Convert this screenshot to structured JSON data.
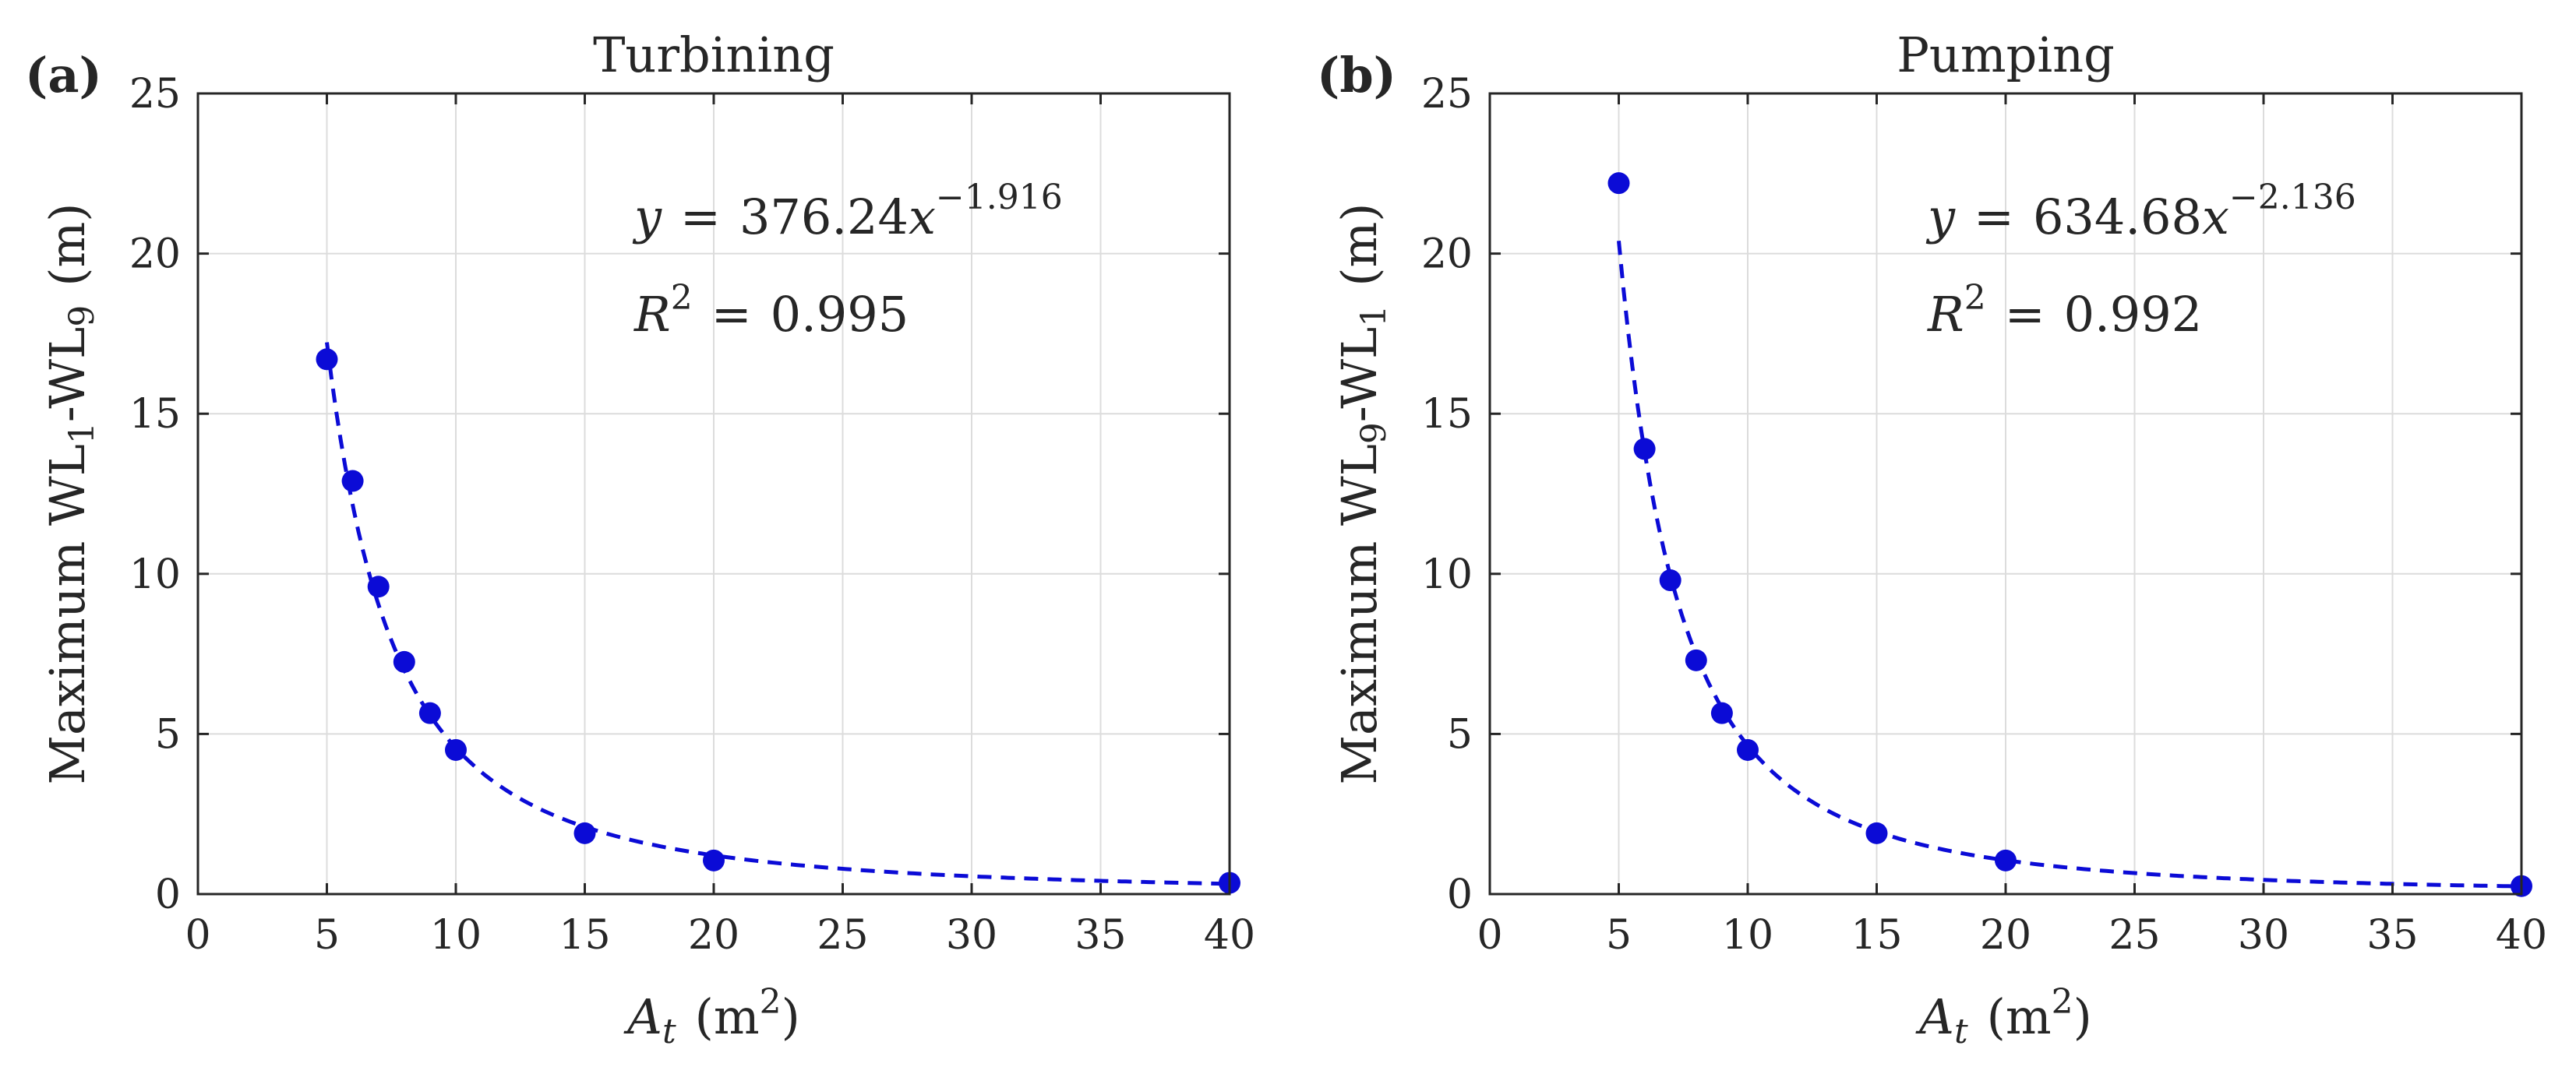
{
  "chart_data": [
    {
      "type": "scatter",
      "panel_label": "(a)",
      "title": "Turbining",
      "xlabel": {
        "symbol": "A",
        "sub": "t",
        "unit": "(m",
        "sup": "2",
        "close": ")"
      },
      "ylabel": {
        "text": "Maximum WL",
        "sub1": "1",
        "mid": "-WL",
        "sub2": "9",
        "unit": "(m)"
      },
      "xlim": [
        0,
        40
      ],
      "ylim": [
        0,
        25
      ],
      "xticks": [
        0,
        5,
        10,
        15,
        20,
        25,
        30,
        35,
        40
      ],
      "yticks": [
        0,
        5,
        10,
        15,
        20,
        25
      ],
      "grid": true,
      "series": [
        {
          "name": "Maximum WL1-WL9",
          "style": "markers",
          "color": "#0b0bd6",
          "x": [
            5,
            6,
            7,
            8,
            9,
            10,
            15,
            20,
            40
          ],
          "y": [
            16.7,
            12.9,
            9.6,
            7.25,
            5.65,
            4.5,
            1.9,
            1.05,
            0.35
          ]
        },
        {
          "name": "Power-law fit",
          "style": "dashed",
          "color": "#0b0bd6",
          "fit": {
            "a": 376.24,
            "b": -1.916
          },
          "x_range": [
            5,
            40
          ]
        }
      ],
      "annotations": {
        "eq_y": "y",
        "eq_eq": "=",
        "eq_coef": "376.24",
        "eq_x": "x",
        "eq_exp": "−1.916",
        "r2_R": "R",
        "r2_sup": "2",
        "r2_eq": "=",
        "r2_val": "0.995"
      }
    },
    {
      "type": "scatter",
      "panel_label": "(b)",
      "title": "Pumping",
      "xlabel": {
        "symbol": "A",
        "sub": "t",
        "unit": "(m",
        "sup": "2",
        "close": ")"
      },
      "ylabel": {
        "text": "Maximum WL",
        "sub1": "9",
        "mid": "-WL",
        "sub2": "1",
        "unit": "(m)"
      },
      "xlim": [
        0,
        40
      ],
      "ylim": [
        0,
        25
      ],
      "xticks": [
        0,
        5,
        10,
        15,
        20,
        25,
        30,
        35,
        40
      ],
      "yticks": [
        0,
        5,
        10,
        15,
        20,
        25
      ],
      "grid": true,
      "series": [
        {
          "name": "Maximum WL9-WL1",
          "style": "markers",
          "color": "#0b0bd6",
          "x": [
            5,
            6,
            7,
            8,
            9,
            10,
            15,
            20,
            40
          ],
          "y": [
            22.2,
            13.9,
            9.8,
            7.3,
            5.65,
            4.5,
            1.9,
            1.05,
            0.25
          ]
        },
        {
          "name": "Power-law fit",
          "style": "dashed",
          "color": "#0b0bd6",
          "fit": {
            "a": 634.68,
            "b": -2.136
          },
          "x_range": [
            5,
            40
          ]
        }
      ],
      "annotations": {
        "eq_y": "y",
        "eq_eq": "=",
        "eq_coef": "634.68",
        "eq_x": "x",
        "eq_exp": "−2.136",
        "r2_R": "R",
        "r2_sup": "2",
        "r2_eq": "=",
        "r2_val": "0.992"
      }
    }
  ]
}
